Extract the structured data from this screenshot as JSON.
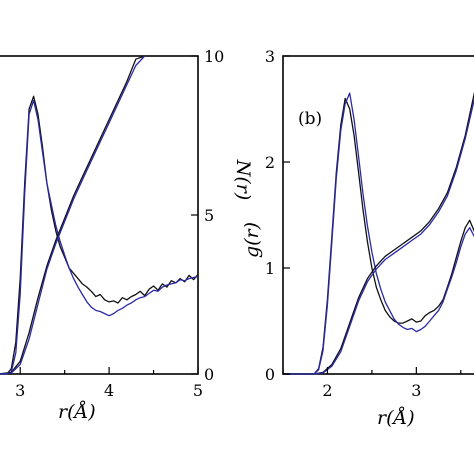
{
  "chart_data": [
    {
      "type": "line",
      "panel_label": "",
      "xlabel": "r(Å)",
      "ylabel_right": "N(r)",
      "xlim": [
        2.75,
        5
      ],
      "ylim_left": [
        0,
        3
      ],
      "ylim_right": [
        0,
        10
      ],
      "x_ticks": [
        "3",
        "4",
        "5"
      ],
      "y_right_ticks": [
        "0",
        "5",
        "10"
      ],
      "colors": {
        "black": "#111111",
        "blue": "#2a2aa8"
      },
      "series": [
        {
          "color": "black",
          "axis": "left",
          "x": [
            2.75,
            2.85,
            2.9,
            2.95,
            3.0,
            3.05,
            3.1,
            3.15,
            3.2,
            3.25,
            3.3,
            3.35,
            3.4,
            3.45,
            3.5,
            3.55,
            3.6,
            3.65,
            3.7,
            3.75,
            3.8,
            3.85,
            3.9,
            3.95,
            4.0,
            4.05,
            4.1,
            4.15,
            4.2,
            4.25,
            4.3,
            4.35,
            4.4,
            4.45,
            4.5,
            4.55,
            4.6,
            4.65,
            4.7,
            4.75,
            4.8,
            4.85,
            4.9,
            4.95,
            5.0
          ],
          "y": [
            0,
            0,
            0.05,
            0.3,
            0.9,
            1.8,
            2.5,
            2.62,
            2.45,
            2.15,
            1.8,
            1.55,
            1.35,
            1.2,
            1.1,
            1.0,
            0.95,
            0.9,
            0.85,
            0.82,
            0.78,
            0.73,
            0.75,
            0.7,
            0.68,
            0.69,
            0.67,
            0.72,
            0.7,
            0.73,
            0.75,
            0.78,
            0.74,
            0.8,
            0.83,
            0.79,
            0.85,
            0.82,
            0.88,
            0.86,
            0.9,
            0.87,
            0.93,
            0.89,
            0.94
          ]
        },
        {
          "color": "blue",
          "axis": "left",
          "x": [
            2.75,
            2.85,
            2.9,
            2.95,
            3.0,
            3.05,
            3.1,
            3.15,
            3.2,
            3.25,
            3.3,
            3.35,
            3.4,
            3.45,
            3.5,
            3.55,
            3.6,
            3.65,
            3.7,
            3.75,
            3.8,
            3.85,
            3.9,
            3.95,
            4.0,
            4.05,
            4.1,
            4.15,
            4.2,
            4.25,
            4.3,
            4.35,
            4.4,
            4.45,
            4.5,
            4.55,
            4.6,
            4.65,
            4.7,
            4.75,
            4.8,
            4.85,
            4.9,
            4.95,
            5.0
          ],
          "y": [
            0,
            0,
            0.02,
            0.2,
            0.75,
            1.7,
            2.45,
            2.58,
            2.4,
            2.1,
            1.8,
            1.6,
            1.4,
            1.25,
            1.12,
            1.0,
            0.9,
            0.82,
            0.75,
            0.68,
            0.63,
            0.6,
            0.59,
            0.57,
            0.55,
            0.57,
            0.6,
            0.62,
            0.65,
            0.67,
            0.7,
            0.72,
            0.73,
            0.76,
            0.79,
            0.78,
            0.82,
            0.84,
            0.85,
            0.86,
            0.89,
            0.88,
            0.9,
            0.91,
            0.92
          ]
        },
        {
          "color": "black",
          "axis": "right",
          "x": [
            2.75,
            2.9,
            3.0,
            3.1,
            3.2,
            3.3,
            3.4,
            3.5,
            3.6,
            3.7,
            3.8,
            3.9,
            4.0,
            4.1,
            4.2,
            4.3,
            4.4
          ],
          "y": [
            0,
            0.05,
            0.4,
            1.3,
            2.4,
            3.4,
            4.2,
            4.9,
            5.6,
            6.2,
            6.8,
            7.4,
            8.0,
            8.6,
            9.2,
            9.9,
            10.0
          ]
        },
        {
          "color": "blue",
          "axis": "right",
          "x": [
            2.75,
            2.9,
            3.0,
            3.1,
            3.2,
            3.3,
            3.4,
            3.5,
            3.6,
            3.7,
            3.8,
            3.9,
            4.0,
            4.1,
            4.2,
            4.3,
            4.4
          ],
          "y": [
            0,
            0.03,
            0.3,
            1.1,
            2.2,
            3.3,
            4.1,
            4.8,
            5.5,
            6.1,
            6.7,
            7.3,
            7.9,
            8.5,
            9.1,
            9.7,
            10.0
          ]
        }
      ]
    },
    {
      "type": "line",
      "panel_label": "(b)",
      "xlabel": "r(Å)",
      "ylabel_left": "g(r)",
      "xlim": [
        1.5,
        3.75
      ],
      "ylim_left": [
        0,
        3
      ],
      "ylim_right": [
        0,
        10
      ],
      "x_ticks": [
        "2",
        "3"
      ],
      "y_left_ticks": [
        "0",
        "1",
        "2",
        "3"
      ],
      "colors": {
        "black": "#111111",
        "blue": "#2a2aa8"
      },
      "series": [
        {
          "color": "black",
          "axis": "left",
          "x": [
            1.5,
            1.85,
            1.9,
            1.95,
            2.0,
            2.05,
            2.1,
            2.15,
            2.2,
            2.25,
            2.3,
            2.35,
            2.4,
            2.45,
            2.5,
            2.55,
            2.6,
            2.65,
            2.7,
            2.75,
            2.8,
            2.85,
            2.9,
            2.95,
            3.0,
            3.05,
            3.1,
            3.15,
            3.2,
            3.25,
            3.3,
            3.35,
            3.4,
            3.45,
            3.5,
            3.55,
            3.6,
            3.65,
            3.7,
            3.75
          ],
          "y": [
            0,
            0,
            0.05,
            0.25,
            0.7,
            1.3,
            1.9,
            2.35,
            2.6,
            2.5,
            2.25,
            1.9,
            1.55,
            1.25,
            1.0,
            0.82,
            0.7,
            0.6,
            0.54,
            0.5,
            0.48,
            0.48,
            0.5,
            0.52,
            0.49,
            0.5,
            0.55,
            0.58,
            0.6,
            0.64,
            0.7,
            0.82,
            0.95,
            1.1,
            1.25,
            1.38,
            1.45,
            1.35,
            1.3,
            1.32
          ]
        },
        {
          "color": "blue",
          "axis": "left",
          "x": [
            1.5,
            1.85,
            1.9,
            1.95,
            2.0,
            2.05,
            2.1,
            2.15,
            2.2,
            2.25,
            2.3,
            2.35,
            2.4,
            2.45,
            2.5,
            2.55,
            2.6,
            2.65,
            2.7,
            2.75,
            2.8,
            2.85,
            2.9,
            2.95,
            3.0,
            3.05,
            3.1,
            3.15,
            3.2,
            3.25,
            3.3,
            3.35,
            3.4,
            3.45,
            3.5,
            3.55,
            3.6,
            3.65,
            3.7,
            3.75
          ],
          "y": [
            0,
            0,
            0.04,
            0.22,
            0.65,
            1.25,
            1.85,
            2.3,
            2.55,
            2.65,
            2.4,
            2.05,
            1.7,
            1.4,
            1.15,
            0.95,
            0.8,
            0.68,
            0.6,
            0.52,
            0.47,
            0.44,
            0.42,
            0.43,
            0.4,
            0.42,
            0.45,
            0.5,
            0.55,
            0.6,
            0.68,
            0.8,
            0.92,
            1.05,
            1.2,
            1.32,
            1.38,
            1.3,
            1.25,
            1.1
          ]
        },
        {
          "color": "black",
          "axis": "right",
          "x": [
            1.5,
            1.85,
            1.95,
            2.05,
            2.15,
            2.25,
            2.35,
            2.45,
            2.55,
            2.65,
            2.75,
            2.85,
            2.95,
            3.05,
            3.15,
            3.25,
            3.35,
            3.45,
            3.55,
            3.65,
            3.75
          ],
          "y": [
            0,
            0,
            0.05,
            0.3,
            0.8,
            1.6,
            2.4,
            3.0,
            3.4,
            3.7,
            3.9,
            4.1,
            4.3,
            4.5,
            4.8,
            5.2,
            5.7,
            6.5,
            7.5,
            8.8,
            10.0
          ]
        },
        {
          "color": "blue",
          "axis": "right",
          "x": [
            1.5,
            1.85,
            1.95,
            2.05,
            2.15,
            2.25,
            2.35,
            2.45,
            2.55,
            2.65,
            2.75,
            2.85,
            2.95,
            3.05,
            3.15,
            3.25,
            3.35,
            3.45,
            3.55,
            3.65,
            3.75
          ],
          "y": [
            0,
            0,
            0.03,
            0.25,
            0.7,
            1.5,
            2.3,
            2.9,
            3.3,
            3.6,
            3.8,
            4.0,
            4.2,
            4.4,
            4.7,
            5.1,
            5.6,
            6.4,
            7.4,
            8.6,
            9.8
          ]
        }
      ]
    }
  ]
}
